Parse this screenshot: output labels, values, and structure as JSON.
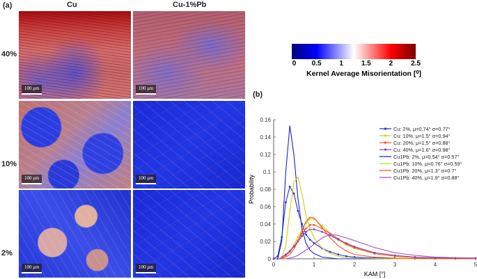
{
  "panel_a": {
    "label": "(a)",
    "columns": [
      "Cu",
      "Cu-1%Pb"
    ],
    "rows": [
      "40%",
      "10%",
      "2%"
    ],
    "scale_bar": "100 μm"
  },
  "colorbar": {
    "ticks": [
      "0",
      "0.5",
      "1",
      "1.5",
      "2",
      "2.5"
    ],
    "title": "Kernel Average Misorientation [⁰]"
  },
  "panel_b": {
    "label": "(b)"
  },
  "chart_data": {
    "type": "line",
    "xlabel": "KAM [°]",
    "ylabel": "Probability",
    "xlim": [
      0,
      5
    ],
    "ylim": [
      0,
      0.16
    ],
    "xticks": [
      "0",
      "1",
      "2",
      "3",
      "4",
      "5"
    ],
    "yticks": [
      "0",
      "0.02",
      "0.04",
      "0.06",
      "0.08",
      "0.1",
      "0.12",
      "0.14",
      "0.16"
    ],
    "legend_position": "top-right",
    "x": [
      0,
      0.1,
      0.2,
      0.3,
      0.4,
      0.5,
      0.6,
      0.7,
      0.8,
      0.9,
      1.0,
      1.2,
      1.4,
      1.6,
      1.8,
      2.0,
      2.5,
      3,
      3.5,
      4,
      4.5,
      5
    ],
    "series": [
      {
        "name": "Cu: 2%, μ=0.74° σ=0.77°",
        "color": "#2233cc",
        "markers": true,
        "values": [
          0,
          0.003,
          0.025,
          0.065,
          0.083,
          0.075,
          0.055,
          0.04,
          0.028,
          0.022,
          0.018,
          0.012,
          0.008,
          0.005,
          0.003,
          0.002,
          0.001,
          0.0005,
          0.0003,
          0.0003,
          0.0002,
          0.0002
        ]
      },
      {
        "name": "Cu: 10%, μ=1.5° σ=0.94°",
        "color": "#c8d20a",
        "markers": true,
        "values": [
          0,
          0,
          0.001,
          0.004,
          0.009,
          0.016,
          0.025,
          0.033,
          0.041,
          0.046,
          0.046,
          0.038,
          0.029,
          0.022,
          0.016,
          0.012,
          0.006,
          0.003,
          0.0015,
          0.001,
          0.0008,
          0.0006
        ]
      },
      {
        "name": "Cu: 20%, μ=1.5° σ=0.88°",
        "color": "#f0531e",
        "markers": true,
        "values": [
          0,
          0,
          0.001,
          0.004,
          0.008,
          0.014,
          0.021,
          0.029,
          0.035,
          0.039,
          0.039,
          0.035,
          0.029,
          0.023,
          0.017,
          0.013,
          0.006,
          0.003,
          0.0015,
          0.001,
          0.0008,
          0.0006
        ]
      },
      {
        "name": "Cu: 40%, μ=1.6° σ=0.98°",
        "color": "#8a3dbd",
        "markers": true,
        "values": [
          0,
          0,
          0.002,
          0.005,
          0.009,
          0.014,
          0.02,
          0.026,
          0.031,
          0.034,
          0.034,
          0.031,
          0.027,
          0.022,
          0.018,
          0.014,
          0.007,
          0.004,
          0.002,
          0.0012,
          0.001,
          0.0008
        ]
      },
      {
        "name": "Cu1Pb: 2%, μ=0.54° σ=0.57°",
        "color": "#1a22c8",
        "markers": false,
        "values": [
          0,
          0,
          0.02,
          0.1,
          0.153,
          0.12,
          0.07,
          0.035,
          0.018,
          0.01,
          0.006,
          0.002,
          0.001,
          0,
          0,
          0,
          0,
          0,
          0,
          0,
          0,
          0
        ]
      },
      {
        "name": "Cu1Pb: 10%, μ=0.76° σ=0.59°",
        "color": "#c8d20a",
        "markers": false,
        "values": [
          0,
          0,
          0.002,
          0.015,
          0.055,
          0.088,
          0.094,
          0.075,
          0.05,
          0.035,
          0.024,
          0.012,
          0.006,
          0.003,
          0.0015,
          0.001,
          0.0003,
          0,
          0,
          0,
          0,
          0
        ]
      },
      {
        "name": "Cu1Pb: 20%, μ=1.3° σ=0.7°",
        "color": "#f0531e",
        "markers": false,
        "values": [
          0,
          0,
          0,
          0.002,
          0.005,
          0.011,
          0.02,
          0.032,
          0.043,
          0.048,
          0.047,
          0.036,
          0.024,
          0.015,
          0.009,
          0.005,
          0.002,
          0.0008,
          0.0003,
          0.0002,
          0.0001,
          0.0001
        ]
      },
      {
        "name": "Cu1Pb: 40%, μ=1.9° σ=0.88°",
        "color": "#9b50c8",
        "markers": false,
        "values": [
          0,
          0,
          0,
          0,
          0.001,
          0.002,
          0.004,
          0.007,
          0.01,
          0.013,
          0.017,
          0.024,
          0.028,
          0.027,
          0.024,
          0.021,
          0.013,
          0.007,
          0.004,
          0.002,
          0.0013,
          0.001
        ]
      }
    ]
  }
}
